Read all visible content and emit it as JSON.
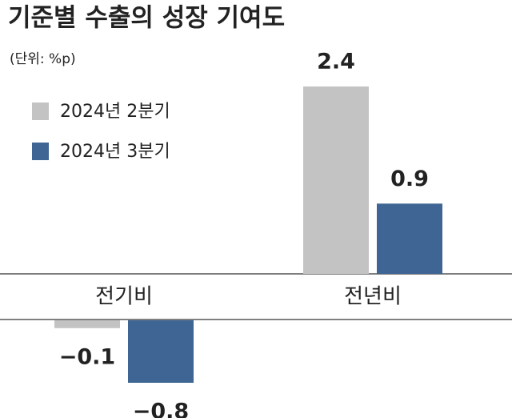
{
  "chart_data": {
    "type": "bar",
    "title": "기준별 수출의 성장 기여도",
    "subtitle": "(단위: %p)",
    "categories": [
      "전기비",
      "전년비"
    ],
    "series": [
      {
        "name": "2024년 2분기",
        "color": "#c3c3c3",
        "values": [
          -0.1,
          2.4
        ],
        "value_labels": [
          "−0.1",
          "2.4"
        ]
      },
      {
        "name": "2024년 3분기",
        "color": "#3e6593",
        "values": [
          -0.8,
          0.9
        ],
        "value_labels": [
          "−0.8",
          "0.9"
        ]
      }
    ],
    "legend": "upper left"
  }
}
